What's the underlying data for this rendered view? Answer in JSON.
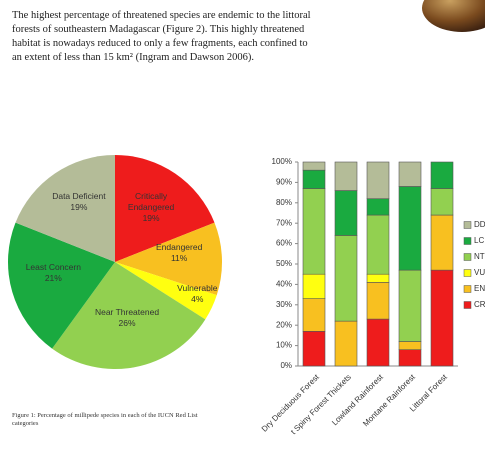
{
  "paragraph": [
    "The highest percentage of threatened species are endemic to the littoral",
    "forests of southeastern Madagascar (Figure 2). This highly threatened",
    "habitat is nowadays reduced to only a few fragments, each confined to",
    "an extent of less than 15 km² (Ingram and Dawson 2006)."
  ],
  "caption": "Figure 1: Percentage of millipede species in each of the IUCN Red List categories",
  "chart_data": [
    {
      "type": "pie",
      "categories": [
        "Critically Endangered",
        "Endangered",
        "Vulnerable",
        "Near Threatened",
        "Least Concern",
        "Data Deficient"
      ],
      "values": [
        19,
        11,
        4,
        26,
        21,
        19
      ],
      "value_labels": [
        "19%",
        "11%",
        "4%",
        "26%",
        "21%",
        "19%"
      ],
      "colors": [
        "#ee1c1c",
        "#f8c020",
        "#ffff10",
        "#92d050",
        "#1aaa40",
        "#b4bc98"
      ]
    },
    {
      "type": "stacked-bar",
      "categories": [
        "Dry Deciduous Forest",
        "t Spiny Forest Thickets",
        "Lowland Rainforest",
        "Montane Rainforest",
        "Littoral Forest"
      ],
      "series": [
        {
          "name": "CR",
          "color": "#ee1c1c",
          "values": [
            17,
            0,
            23,
            8,
            47
          ]
        },
        {
          "name": "EN",
          "color": "#f8c020",
          "values": [
            16,
            22,
            18,
            4,
            27
          ]
        },
        {
          "name": "VU",
          "color": "#ffff10",
          "values": [
            12,
            0,
            4,
            0,
            0
          ]
        },
        {
          "name": "NT",
          "color": "#92d050",
          "values": [
            42,
            42,
            29,
            35,
            13
          ]
        },
        {
          "name": "LC",
          "color": "#1aaa40",
          "values": [
            9,
            22,
            8,
            41,
            13
          ]
        },
        {
          "name": "DD",
          "color": "#b4bc98",
          "values": [
            4,
            14,
            18,
            12,
            0
          ]
        }
      ],
      "ylim": [
        0,
        100
      ],
      "yticks": [
        {
          "value": 0,
          "label": "0%"
        },
        {
          "value": 10,
          "label": "10%"
        },
        {
          "value": 20,
          "label": "20%"
        },
        {
          "value": 30,
          "label": "30%"
        },
        {
          "value": 40,
          "label": "40%"
        },
        {
          "value": 50,
          "label": "50%"
        },
        {
          "value": 60,
          "label": "60%"
        },
        {
          "value": 70,
          "label": "70%"
        },
        {
          "value": 80,
          "label": "80%"
        },
        {
          "value": 90,
          "label": "90%"
        },
        {
          "value": 100,
          "label": "100%"
        }
      ]
    }
  ]
}
